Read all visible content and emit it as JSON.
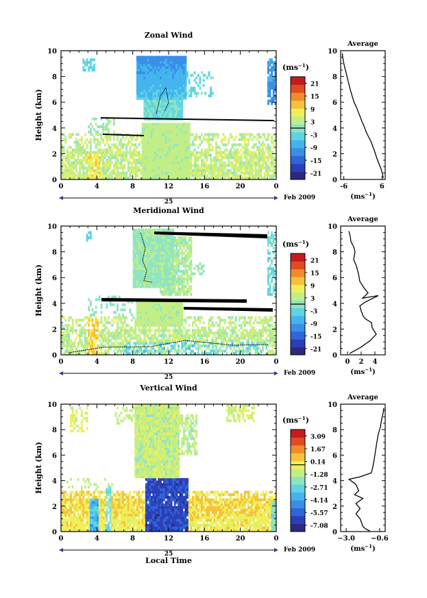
{
  "page": {
    "xlabel_bottom": "Local Time",
    "day_label": "25",
    "month_label": "Feb 2009",
    "unit_label": "(ms",
    "unit_exp": "−1",
    "unit_close": ")",
    "average_unit": "(ms",
    "average_title": "Average"
  },
  "colorscale": [
    "#2b2a7e",
    "#2c3fb8",
    "#2f66d8",
    "#3a8ee8",
    "#44b4ef",
    "#5ed4e4",
    "#8fe5c2",
    "#c2ee86",
    "#eef05a",
    "#f6c23a",
    "#f08c2c",
    "#e24a24",
    "#c21d1d"
  ],
  "chart_data": [
    {
      "type": "heatmap",
      "title": "Zonal Wind",
      "ylabel": "Height (km)",
      "xticks": [
        "0",
        "4",
        "8",
        "12",
        "16",
        "20",
        "0"
      ],
      "yticks": [
        "0",
        "2",
        "4",
        "6",
        "8",
        "10"
      ],
      "xlim": [
        0,
        24
      ],
      "ylim": [
        0,
        10
      ],
      "colorbar_ticks": [
        "21",
        "15",
        "9",
        "3",
        "-3",
        "-9",
        "-15",
        "-21"
      ],
      "colorbar_range": [
        -24,
        24
      ],
      "average": {
        "title": "Average",
        "xticks": [
          "-6",
          "6"
        ],
        "xlim": [
          -7,
          7
        ],
        "x": [
          -6.5,
          -6.3,
          -6.0,
          -5.6,
          -5.2,
          -4.6,
          -4.0,
          -3.4,
          -2.8,
          -2.0,
          -1.4,
          -0.9,
          -0.3,
          0.4,
          1.0,
          1.8,
          2.6,
          3.2,
          3.8,
          4.3,
          4.9,
          5.6,
          6.1,
          6.4
        ],
        "y": [
          9.8,
          9.4,
          9.0,
          8.6,
          8.2,
          7.6,
          7.0,
          6.5,
          6.0,
          5.6,
          5.2,
          4.9,
          4.5,
          4.1,
          3.7,
          3.3,
          2.9,
          2.5,
          2.1,
          1.7,
          1.3,
          0.9,
          0.5,
          0.1
        ]
      }
    },
    {
      "type": "heatmap",
      "title": "Meridional Wind",
      "ylabel": "Height (km)",
      "xticks": [
        "0",
        "4",
        "8",
        "12",
        "16",
        "20",
        "0"
      ],
      "yticks": [
        "0",
        "2",
        "4",
        "6",
        "8",
        "10"
      ],
      "xlim": [
        0,
        24
      ],
      "ylim": [
        0,
        10
      ],
      "colorbar_ticks": [
        "21",
        "15",
        "9",
        "3",
        "-3",
        "-9",
        "-15",
        "-21"
      ],
      "colorbar_range": [
        -24,
        24
      ],
      "average": {
        "title": "Average",
        "xticks": [
          "0",
          "2",
          "4"
        ],
        "xlim": [
          -1,
          5.5
        ],
        "x": [
          0.2,
          0.4,
          0.5,
          0.9,
          1.1,
          0.9,
          1.3,
          1.6,
          1.8,
          2.4,
          3.0,
          2.2,
          4.5,
          2.6,
          1.8,
          2.0,
          2.3,
          2.6,
          3.5,
          3.6,
          4.2,
          3.3,
          2.0,
          0.3
        ],
        "y": [
          9.6,
          9.2,
          8.8,
          8.4,
          8.0,
          7.4,
          6.9,
          6.3,
          5.7,
          5.2,
          4.8,
          4.4,
          4.6,
          4.1,
          3.8,
          3.4,
          3.0,
          2.8,
          2.5,
          2.1,
          1.6,
          1.1,
          0.6,
          0.1
        ]
      }
    },
    {
      "type": "heatmap",
      "title": "Vertical Wind",
      "ylabel": "Height (km)",
      "xticks": [
        "0",
        "4",
        "8",
        "12",
        "16",
        "20",
        "0"
      ],
      "yticks": [
        "0",
        "2",
        "4",
        "6",
        "8",
        "10"
      ],
      "xlim": [
        0,
        24
      ],
      "ylim": [
        0,
        10
      ],
      "colorbar_ticks": [
        "3.09",
        "1.67",
        "0.14",
        "-1.28",
        "-2.71",
        "-4.14",
        "-5.57",
        "-7.08"
      ],
      "colorbar_range": [
        -8.5,
        4.5
      ],
      "average": {
        "title": "Average",
        "xticks": [
          "−3.0",
          "−0.6"
        ],
        "xlim": [
          -3.4,
          -0.2
        ],
        "x": [
          -0.3,
          -0.35,
          -0.45,
          -0.55,
          -0.7,
          -0.8,
          -0.9,
          -1.0,
          -1.1,
          -1.2,
          -2.0,
          -2.8,
          -2.3,
          -2.1,
          -2.4,
          -1.8,
          -2.3,
          -2.0,
          -2.3,
          -2.0,
          -1.9,
          -1.8,
          -1.6,
          -1.3
        ],
        "y": [
          9.7,
          9.3,
          8.8,
          8.2,
          7.6,
          7.0,
          6.3,
          5.6,
          5.0,
          4.6,
          4.3,
          4.1,
          3.7,
          3.2,
          2.9,
          2.6,
          2.2,
          1.8,
          1.4,
          1.0,
          0.7,
          0.4,
          0.2,
          0.05
        ]
      }
    }
  ]
}
